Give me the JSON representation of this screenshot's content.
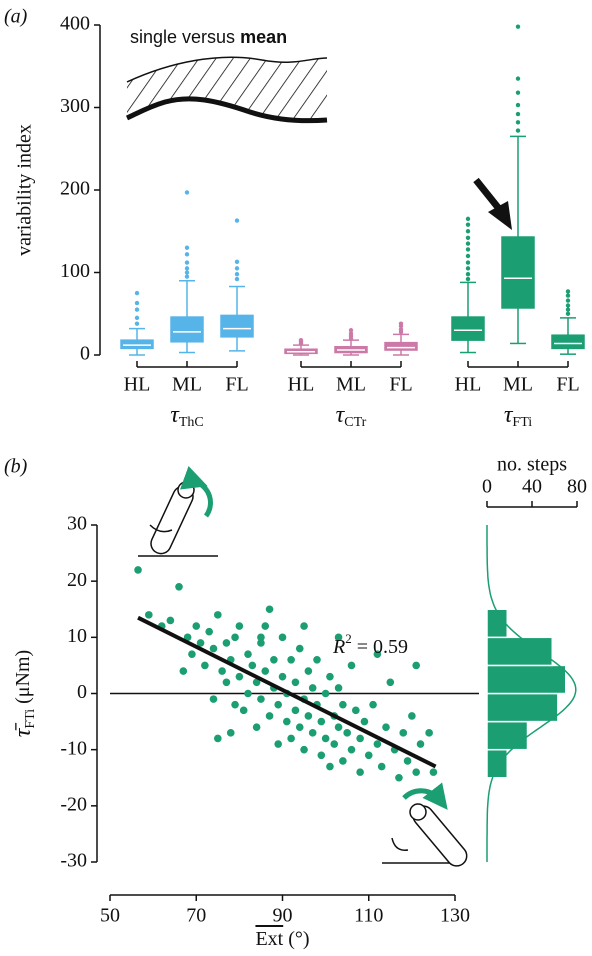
{
  "chart_data": [
    {
      "type": "box",
      "panel": "(a)",
      "ylabel": "variability index",
      "ylim": [
        0,
        400
      ],
      "yticks": [
        0,
        100,
        200,
        300,
        400
      ],
      "annotation": {
        "text": "single versus ",
        "bold": "mean"
      },
      "groups": [
        {
          "symbol": "τ",
          "subscript": "ThC",
          "color": "#56b4e9",
          "categories": [
            "HL",
            "ML",
            "FL"
          ],
          "boxes": [
            {
              "min": 0,
              "q1": 8,
              "median": 12,
              "q3": 18,
              "max": 32,
              "outliers": [
                38,
                45,
                55,
                63,
                75
              ]
            },
            {
              "min": 3,
              "q1": 16,
              "median": 28,
              "q3": 46,
              "max": 90,
              "outliers": [
                95,
                100,
                105,
                112,
                122,
                130,
                197
              ]
            },
            {
              "min": 5,
              "q1": 22,
              "median": 32,
              "q3": 48,
              "max": 83,
              "outliers": [
                92,
                98,
                105,
                113,
                163
              ]
            }
          ]
        },
        {
          "symbol": "τ",
          "subscript": "CTr",
          "color": "#cc79a7",
          "categories": [
            "HL",
            "ML",
            "FL"
          ],
          "boxes": [
            {
              "min": 0,
              "q1": 2,
              "median": 4,
              "q3": 7,
              "max": 12,
              "outliers": [
                14,
                16,
                18
              ]
            },
            {
              "min": 0,
              "q1": 3,
              "median": 6,
              "q3": 10,
              "max": 18,
              "outliers": [
                20,
                23,
                26,
                30
              ]
            },
            {
              "min": 0,
              "q1": 6,
              "median": 9,
              "q3": 15,
              "max": 25,
              "outliers": [
                28,
                31,
                35,
                38
              ]
            }
          ]
        },
        {
          "symbol": "τ",
          "subscript": "FTi",
          "color": "#1a9e72",
          "categories": [
            "HL",
            "ML",
            "FL"
          ],
          "boxes": [
            {
              "min": 3,
              "q1": 18,
              "median": 30,
              "q3": 46,
              "max": 88,
              "outliers": [
                92,
                98,
                105,
                112,
                120,
                128,
                135,
                142,
                150,
                158,
                165
              ]
            },
            {
              "min": 14,
              "q1": 57,
              "median": 93,
              "q3": 143,
              "max": 265,
              "outliers": [
                272,
                282,
                292,
                303,
                318,
                335,
                398
              ]
            },
            {
              "min": 1,
              "q1": 8,
              "median": 14,
              "q3": 24,
              "max": 45,
              "outliers": [
                50,
                55,
                60,
                66,
                72,
                77
              ]
            }
          ]
        }
      ]
    },
    {
      "type": "scatter",
      "panel": "(b)",
      "xlabel": {
        "text": "Ext",
        "unit": " (°)"
      },
      "ylabel": {
        "symbol": "τ̄",
        "subscript": "FTi",
        "unit": " (μNm)"
      },
      "xlim": [
        50,
        130
      ],
      "xticks": [
        50,
        70,
        90,
        110,
        130
      ],
      "ylim": [
        -30,
        30
      ],
      "yticks": [
        -30,
        -20,
        -10,
        0,
        10,
        20,
        30
      ],
      "color": "#1a9e72",
      "x": [
        56.5,
        59,
        62,
        64,
        66,
        67,
        68,
        69,
        70,
        71,
        72,
        73,
        74,
        74,
        75,
        76,
        77,
        77,
        78,
        79,
        79,
        80,
        80,
        81,
        82,
        82,
        83,
        84,
        84,
        85,
        85,
        86,
        86,
        87,
        87,
        88,
        88,
        89,
        89,
        90,
        90,
        91,
        91,
        92,
        92,
        93,
        93,
        94,
        94,
        95,
        95,
        96,
        96,
        97,
        97,
        98,
        98,
        99,
        99,
        100,
        100,
        101,
        101,
        102,
        102,
        103,
        103,
        104,
        104,
        105,
        106,
        106,
        107,
        108,
        108,
        109,
        110,
        111,
        112,
        113,
        114,
        115,
        116,
        117,
        118,
        119,
        120,
        121,
        122,
        124,
        125,
        75,
        78,
        85,
        95,
        103,
        112,
        121
      ],
      "y": [
        22,
        14,
        12,
        13,
        19,
        4,
        10,
        7,
        12,
        9,
        5,
        11,
        8,
        -1,
        14,
        4,
        2,
        9,
        6,
        -2,
        10,
        3,
        12,
        -3,
        7,
        0,
        5,
        -6,
        2,
        9,
        -1,
        12,
        4,
        15,
        -4,
        1,
        6,
        -2,
        -9,
        3,
        10,
        -5,
        0,
        6,
        -8,
        -3,
        2,
        -6,
        8,
        -1,
        -10,
        4,
        -4,
        -7,
        1,
        -2,
        6,
        -11,
        -5,
        0,
        -8,
        3,
        -13,
        -4,
        -9,
        1,
        -6,
        -12,
        -2,
        -7,
        5,
        -10,
        -3,
        -8,
        -14,
        -5,
        -11,
        -2,
        -9,
        -13,
        -6,
        2,
        -10,
        -15,
        -7,
        -12,
        -4,
        -14,
        -9,
        -7,
        -14,
        -8,
        -7,
        10,
        12,
        10,
        7,
        5
      ],
      "fit": {
        "x": [
          56.5,
          125.5
        ],
        "y": [
          13.5,
          -13
        ]
      },
      "reference_y": 0,
      "annotation": {
        "symbol": "R",
        "superscript": "2",
        "text": " = 0.59"
      },
      "histogram": {
        "label": "no. steps",
        "bins": [
          -15,
          -10,
          -5,
          0,
          5,
          10,
          15
        ],
        "counts": [
          18,
          36,
          63,
          70,
          58,
          18
        ],
        "xlim": [
          0,
          80
        ],
        "xticks": [
          0,
          40,
          80
        ]
      }
    }
  ]
}
